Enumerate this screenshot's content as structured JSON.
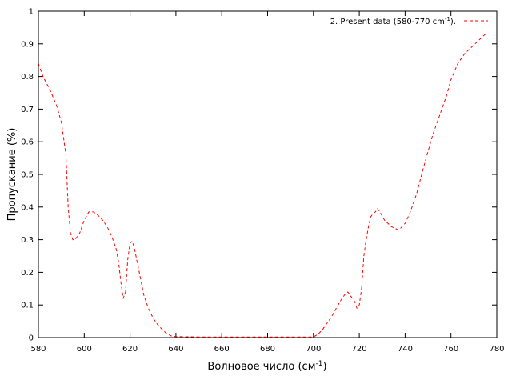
{
  "chart_data": {
    "type": "line",
    "title": "",
    "xlabel": {
      "text": "Волновое число (см",
      "superscript": "-1",
      "suffix": ")"
    },
    "ylabel": "Пропускание (%)",
    "xlim": [
      580,
      780
    ],
    "ylim": [
      0,
      1
    ],
    "x_ticks": [
      "580",
      "600",
      "620",
      "640",
      "660",
      "680",
      "700",
      "720",
      "740",
      "760",
      "780"
    ],
    "y_ticks": [
      "0",
      "0.1",
      "0.2",
      "0.3",
      "0.4",
      "0.5",
      "0.6",
      "0.7",
      "0.8",
      "0.9",
      "1"
    ],
    "grid": false,
    "legend_position": "top-right",
    "legend": {
      "prefix": "2. Present data (580-770 cm",
      "superscript": "-1",
      "suffix": ")."
    },
    "series": [
      {
        "name": "2. Present data (580-770 cm-1).",
        "color": "#ff0000",
        "dash": "dashed",
        "points": [
          [
            580,
            0.84
          ],
          [
            582,
            0.8
          ],
          [
            585,
            0.76
          ],
          [
            588,
            0.71
          ],
          [
            590,
            0.66
          ],
          [
            592,
            0.56
          ],
          [
            593,
            0.4
          ],
          [
            594,
            0.32
          ],
          [
            595,
            0.3
          ],
          [
            596,
            0.3
          ],
          [
            598,
            0.32
          ],
          [
            600,
            0.36
          ],
          [
            602,
            0.385
          ],
          [
            604,
            0.385
          ],
          [
            606,
            0.375
          ],
          [
            608,
            0.36
          ],
          [
            610,
            0.34
          ],
          [
            612,
            0.31
          ],
          [
            614,
            0.27
          ],
          [
            615,
            0.23
          ],
          [
            616,
            0.17
          ],
          [
            617,
            0.12
          ],
          [
            618,
            0.14
          ],
          [
            619,
            0.24
          ],
          [
            620,
            0.29
          ],
          [
            621,
            0.295
          ],
          [
            622,
            0.27
          ],
          [
            624,
            0.2
          ],
          [
            626,
            0.13
          ],
          [
            628,
            0.09
          ],
          [
            630,
            0.06
          ],
          [
            632,
            0.04
          ],
          [
            634,
            0.025
          ],
          [
            636,
            0.012
          ],
          [
            638,
            0.005
          ],
          [
            640,
            0.003
          ],
          [
            650,
            0.002
          ],
          [
            660,
            0.002
          ],
          [
            670,
            0.002
          ],
          [
            680,
            0.002
          ],
          [
            690,
            0.002
          ],
          [
            700,
            0.002
          ],
          [
            702,
            0.01
          ],
          [
            704,
            0.025
          ],
          [
            706,
            0.045
          ],
          [
            708,
            0.065
          ],
          [
            710,
            0.09
          ],
          [
            712,
            0.115
          ],
          [
            714,
            0.135
          ],
          [
            715,
            0.14
          ],
          [
            716,
            0.13
          ],
          [
            718,
            0.11
          ],
          [
            719,
            0.09
          ],
          [
            720,
            0.1
          ],
          [
            721,
            0.15
          ],
          [
            722,
            0.25
          ],
          [
            723,
            0.3
          ],
          [
            724,
            0.34
          ],
          [
            725,
            0.37
          ],
          [
            726,
            0.38
          ],
          [
            727,
            0.385
          ],
          [
            728,
            0.395
          ],
          [
            729,
            0.385
          ],
          [
            731,
            0.36
          ],
          [
            734,
            0.34
          ],
          [
            737,
            0.33
          ],
          [
            738,
            0.335
          ],
          [
            740,
            0.35
          ],
          [
            742,
            0.38
          ],
          [
            745,
            0.44
          ],
          [
            748,
            0.52
          ],
          [
            750,
            0.57
          ],
          [
            752,
            0.62
          ],
          [
            755,
            0.68
          ],
          [
            758,
            0.74
          ],
          [
            760,
            0.79
          ],
          [
            763,
            0.84
          ],
          [
            766,
            0.87
          ],
          [
            769,
            0.89
          ],
          [
            772,
            0.91
          ],
          [
            775,
            0.93
          ]
        ]
      }
    ]
  }
}
